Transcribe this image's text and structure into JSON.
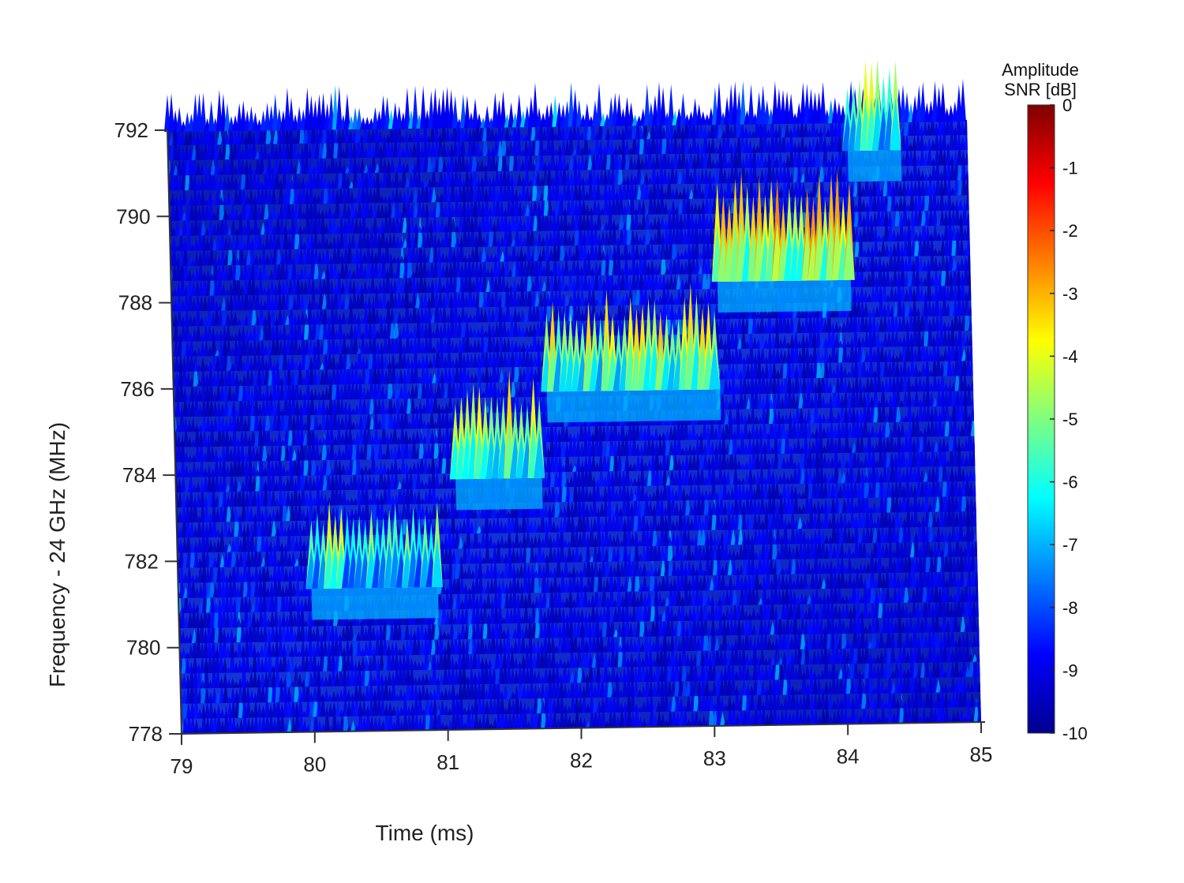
{
  "chart_data": {
    "type": "heatmap",
    "style": "3d-surface-waterfall",
    "title": "",
    "xlabel": "Time (ms)",
    "ylabel": "Frequency - 24 GHz (MHz)",
    "xlim": [
      79,
      85
    ],
    "ylim": [
      778,
      792
    ],
    "x_ticks": [
      79,
      80,
      81,
      82,
      83,
      84,
      85
    ],
    "y_ticks": [
      778,
      780,
      782,
      784,
      786,
      788,
      790,
      792
    ],
    "colorbar": {
      "title_line1": "Amplitude",
      "title_line2": "SNR [dB]",
      "range": [
        -10,
        0
      ],
      "ticks": [
        0,
        -1,
        -2,
        -3,
        -4,
        -5,
        -6,
        -7,
        -8,
        -9,
        -10
      ],
      "colormap": "jet"
    },
    "background_level_db": -9,
    "signal_segments": [
      {
        "t_start": 80.0,
        "t_end": 80.95,
        "freq_mhz": 781.5,
        "peak_db": -4.0
      },
      {
        "t_start": 81.1,
        "t_end": 81.75,
        "freq_mhz": 784.0,
        "peak_db": -3.0
      },
      {
        "t_start": 81.8,
        "t_end": 83.1,
        "freq_mhz": 786.0,
        "peak_db": -3.0
      },
      {
        "t_start": 83.1,
        "t_end": 84.1,
        "freq_mhz": 788.5,
        "peak_db": -2.5
      },
      {
        "t_start": 84.1,
        "t_end": 84.5,
        "freq_mhz": 791.5,
        "peak_db": -3.5
      }
    ],
    "grid": false,
    "legend": "colorbar-right"
  }
}
